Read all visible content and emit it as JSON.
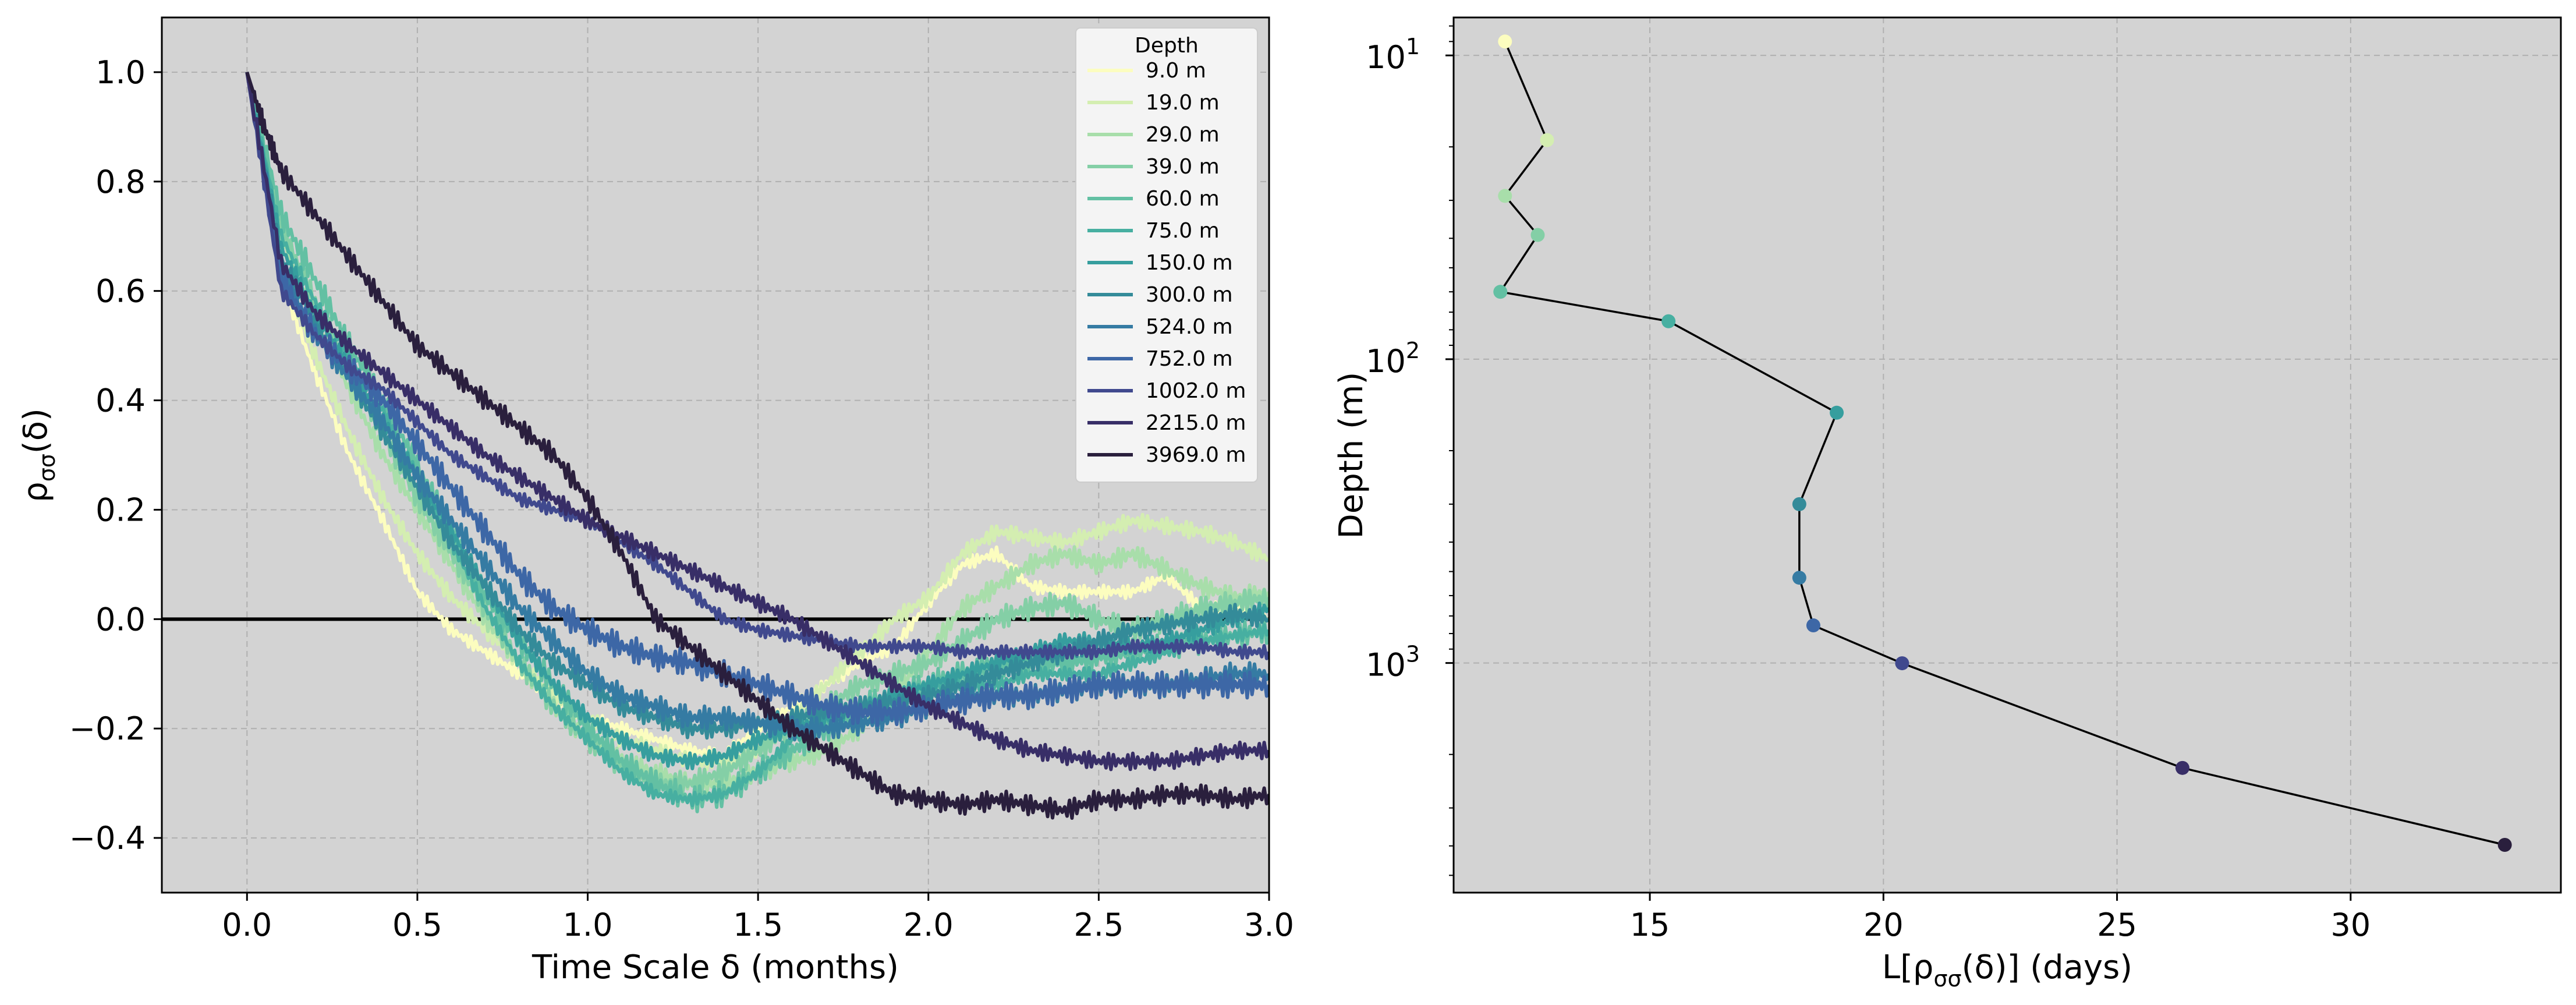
{
  "chart_data": [
    {
      "type": "line",
      "xlabel": "Time Scale δ (months)",
      "ylabel": "ρσσ(δ)",
      "ylabel_main": "ρ",
      "ylabel_sub": "σσ",
      "ylabel_tail": "(δ)",
      "xlim": [
        -0.25,
        3.0
      ],
      "ylim": [
        -0.5,
        1.1
      ],
      "x_ticks": [
        "0.0",
        "0.5",
        "1.0",
        "1.5",
        "2.0",
        "2.5",
        "3.0"
      ],
      "y_ticks": [
        "1.0",
        "0.8",
        "0.6",
        "0.4",
        "0.2",
        "0.0",
        "−0.2",
        "−0.4"
      ],
      "grid": true,
      "legend": {
        "title": "Depth",
        "placement": "top-right"
      },
      "background": "#d3d3d3",
      "zero_line": 0,
      "series": [
        {
          "name": "9.0 m",
          "color": "#fcfdbf",
          "x": [
            0,
            0.1,
            0.2,
            0.3,
            0.4,
            0.5,
            0.6,
            0.7,
            0.8,
            0.9,
            1.0,
            1.1,
            1.2,
            1.3,
            1.4,
            1.5,
            1.6,
            1.7,
            1.8,
            1.9,
            2.0,
            2.1,
            2.2,
            2.3,
            2.4,
            2.5,
            2.6,
            2.7,
            2.8,
            2.9,
            3.0
          ],
          "y": [
            1.0,
            0.62,
            0.45,
            0.3,
            0.18,
            0.05,
            -0.02,
            -0.06,
            -0.1,
            -0.14,
            -0.18,
            -0.2,
            -0.22,
            -0.24,
            -0.25,
            -0.2,
            -0.16,
            -0.12,
            -0.08,
            -0.05,
            0.03,
            0.1,
            0.12,
            0.06,
            0.05,
            0.05,
            0.05,
            0.08,
            0.02,
            0.02,
            0.0
          ]
        },
        {
          "name": "19.0 m",
          "color": "#d4eeb1",
          "x": [
            0,
            0.1,
            0.2,
            0.3,
            0.4,
            0.5,
            0.6,
            0.7,
            0.8,
            0.9,
            1.0,
            1.1,
            1.2,
            1.3,
            1.4,
            1.5,
            1.6,
            1.7,
            1.8,
            1.9,
            2.0,
            2.1,
            2.2,
            2.3,
            2.4,
            2.5,
            2.6,
            2.7,
            2.8,
            2.9,
            3.0
          ],
          "y": [
            1.0,
            0.64,
            0.48,
            0.34,
            0.22,
            0.12,
            0.04,
            -0.02,
            -0.08,
            -0.14,
            -0.18,
            -0.22,
            -0.24,
            -0.26,
            -0.26,
            -0.24,
            -0.18,
            -0.12,
            -0.06,
            0.0,
            0.04,
            0.12,
            0.16,
            0.15,
            0.14,
            0.16,
            0.18,
            0.17,
            0.16,
            0.14,
            0.11
          ]
        },
        {
          "name": "29.0 m",
          "color": "#a8deaa",
          "x": [
            0,
            0.1,
            0.2,
            0.3,
            0.4,
            0.5,
            0.6,
            0.7,
            0.8,
            0.9,
            1.0,
            1.1,
            1.2,
            1.3,
            1.4,
            1.5,
            1.6,
            1.7,
            1.8,
            1.9,
            2.0,
            2.1,
            2.2,
            2.3,
            2.4,
            2.5,
            2.6,
            2.7,
            2.8,
            2.9,
            3.0
          ],
          "y": [
            1.0,
            0.7,
            0.55,
            0.42,
            0.3,
            0.2,
            0.1,
            0.0,
            -0.08,
            -0.16,
            -0.22,
            -0.26,
            -0.28,
            -0.3,
            -0.3,
            -0.28,
            -0.26,
            -0.24,
            -0.2,
            -0.14,
            -0.06,
            0.02,
            0.06,
            0.1,
            0.12,
            0.1,
            0.12,
            0.09,
            0.06,
            0.04,
            0.05
          ]
        },
        {
          "name": "39.0 m",
          "color": "#84cfa6",
          "x": [
            0,
            0.1,
            0.2,
            0.3,
            0.4,
            0.5,
            0.6,
            0.7,
            0.8,
            0.9,
            1.0,
            1.1,
            1.2,
            1.3,
            1.4,
            1.5,
            1.6,
            1.7,
            1.8,
            1.9,
            2.0,
            2.1,
            2.2,
            2.3,
            2.4,
            2.5,
            2.6,
            2.7,
            2.8,
            2.9,
            3.0
          ],
          "y": [
            1.0,
            0.72,
            0.58,
            0.46,
            0.34,
            0.22,
            0.12,
            0.02,
            -0.08,
            -0.16,
            -0.22,
            -0.27,
            -0.3,
            -0.3,
            -0.28,
            -0.24,
            -0.2,
            -0.16,
            -0.12,
            -0.1,
            -0.08,
            -0.04,
            0.0,
            0.02,
            0.03,
            0.0,
            -0.02,
            0.0,
            0.02,
            0.03,
            0.04
          ]
        },
        {
          "name": "60.0 m",
          "color": "#63c0a3",
          "x": [
            0,
            0.1,
            0.2,
            0.3,
            0.4,
            0.5,
            0.6,
            0.7,
            0.8,
            0.9,
            1.0,
            1.1,
            1.2,
            1.3,
            1.4,
            1.5,
            1.6,
            1.7,
            1.8,
            1.9,
            2.0,
            2.1,
            2.2,
            2.3,
            2.4,
            2.5,
            2.6,
            2.7,
            2.8,
            2.9,
            3.0
          ],
          "y": [
            1.0,
            0.74,
            0.62,
            0.5,
            0.4,
            0.28,
            0.16,
            0.04,
            -0.04,
            -0.12,
            -0.2,
            -0.26,
            -0.3,
            -0.33,
            -0.32,
            -0.28,
            -0.24,
            -0.2,
            -0.16,
            -0.14,
            -0.12,
            -0.1,
            -0.08,
            -0.08,
            -0.08,
            -0.07,
            -0.06,
            -0.05,
            -0.04,
            -0.03,
            -0.02
          ]
        },
        {
          "name": "75.0 m",
          "color": "#47afa1",
          "x": [
            0,
            0.1,
            0.2,
            0.3,
            0.4,
            0.5,
            0.6,
            0.7,
            0.8,
            0.9,
            1.0,
            1.1,
            1.2,
            1.3,
            1.4,
            1.5,
            1.6,
            1.7,
            1.8,
            1.9,
            2.0,
            2.1,
            2.2,
            2.3,
            2.4,
            2.5,
            2.6,
            2.7,
            2.8,
            2.9,
            3.0
          ],
          "y": [
            1.0,
            0.7,
            0.58,
            0.48,
            0.38,
            0.26,
            0.14,
            0.02,
            -0.08,
            -0.16,
            -0.22,
            -0.28,
            -0.32,
            -0.33,
            -0.32,
            -0.28,
            -0.22,
            -0.18,
            -0.16,
            -0.14,
            -0.12,
            -0.12,
            -0.12,
            -0.1,
            -0.1,
            -0.1,
            -0.08,
            -0.06,
            -0.04,
            -0.03,
            -0.02
          ]
        },
        {
          "name": "150.0 m",
          "color": "#369e9e",
          "x": [
            0,
            0.1,
            0.2,
            0.3,
            0.4,
            0.5,
            0.6,
            0.7,
            0.8,
            0.9,
            1.0,
            1.1,
            1.2,
            1.3,
            1.4,
            1.5,
            1.6,
            1.7,
            1.8,
            1.9,
            2.0,
            2.1,
            2.2,
            2.3,
            2.4,
            2.5,
            2.6,
            2.7,
            2.8,
            2.9,
            3.0
          ],
          "y": [
            1.0,
            0.68,
            0.56,
            0.46,
            0.36,
            0.26,
            0.16,
            0.06,
            -0.04,
            -0.12,
            -0.18,
            -0.22,
            -0.25,
            -0.26,
            -0.25,
            -0.22,
            -0.2,
            -0.18,
            -0.16,
            -0.14,
            -0.12,
            -0.1,
            -0.08,
            -0.06,
            -0.04,
            -0.04,
            -0.05,
            -0.04,
            -0.02,
            0.0,
            0.02
          ]
        },
        {
          "name": "300.0 m",
          "color": "#348b99",
          "x": [
            0,
            0.1,
            0.2,
            0.3,
            0.4,
            0.5,
            0.6,
            0.7,
            0.8,
            0.9,
            1.0,
            1.1,
            1.2,
            1.3,
            1.4,
            1.5,
            1.6,
            1.7,
            1.8,
            1.9,
            2.0,
            2.1,
            2.2,
            2.3,
            2.4,
            2.5,
            2.6,
            2.7,
            2.8,
            2.9,
            3.0
          ],
          "y": [
            1.0,
            0.66,
            0.54,
            0.44,
            0.34,
            0.24,
            0.14,
            0.06,
            -0.02,
            -0.08,
            -0.12,
            -0.16,
            -0.18,
            -0.2,
            -0.2,
            -0.19,
            -0.18,
            -0.17,
            -0.16,
            -0.15,
            -0.14,
            -0.12,
            -0.1,
            -0.08,
            -0.06,
            -0.04,
            -0.02,
            -0.01,
            0.0,
            0.01,
            0.0
          ]
        },
        {
          "name": "524.0 m",
          "color": "#357ba3",
          "x": [
            0,
            0.1,
            0.2,
            0.3,
            0.4,
            0.5,
            0.6,
            0.7,
            0.8,
            0.9,
            1.0,
            1.1,
            1.2,
            1.3,
            1.4,
            1.5,
            1.6,
            1.7,
            1.8,
            1.9,
            2.0,
            2.1,
            2.2,
            2.3,
            2.4,
            2.5,
            2.6,
            2.7,
            2.8,
            2.9,
            3.0
          ],
          "y": [
            1.0,
            0.64,
            0.52,
            0.44,
            0.36,
            0.26,
            0.18,
            0.1,
            0.02,
            -0.04,
            -0.1,
            -0.14,
            -0.16,
            -0.18,
            -0.18,
            -0.19,
            -0.2,
            -0.2,
            -0.19,
            -0.18,
            -0.16,
            -0.14,
            -0.14,
            -0.14,
            -0.13,
            -0.12,
            -0.12,
            -0.12,
            -0.11,
            -0.1,
            -0.1
          ]
        },
        {
          "name": "752.0 m",
          "color": "#3d67a6",
          "x": [
            0,
            0.1,
            0.2,
            0.3,
            0.4,
            0.5,
            0.6,
            0.7,
            0.8,
            0.9,
            1.0,
            1.1,
            1.2,
            1.3,
            1.4,
            1.5,
            1.6,
            1.7,
            1.8,
            1.9,
            2.0,
            2.1,
            2.2,
            2.3,
            2.4,
            2.5,
            2.6,
            2.7,
            2.8,
            2.9,
            3.0
          ],
          "y": [
            1.0,
            0.62,
            0.52,
            0.46,
            0.4,
            0.32,
            0.24,
            0.16,
            0.08,
            0.02,
            -0.02,
            -0.05,
            -0.07,
            -0.08,
            -0.1,
            -0.12,
            -0.14,
            -0.16,
            -0.17,
            -0.17,
            -0.16,
            -0.15,
            -0.14,
            -0.14,
            -0.13,
            -0.12,
            -0.12,
            -0.12,
            -0.12,
            -0.12,
            -0.12
          ]
        },
        {
          "name": "1002.0 m",
          "color": "#40498e",
          "x": [
            0,
            0.1,
            0.2,
            0.3,
            0.4,
            0.5,
            0.6,
            0.7,
            0.8,
            0.9,
            1.0,
            1.1,
            1.2,
            1.3,
            1.4,
            1.5,
            1.6,
            1.7,
            1.8,
            1.9,
            2.0,
            2.1,
            2.2,
            2.3,
            2.4,
            2.5,
            2.6,
            2.7,
            2.8,
            2.9,
            3.0
          ],
          "y": [
            1.0,
            0.6,
            0.52,
            0.46,
            0.42,
            0.36,
            0.3,
            0.26,
            0.22,
            0.2,
            0.18,
            0.14,
            0.1,
            0.05,
            0.0,
            -0.02,
            -0.03,
            -0.04,
            -0.05,
            -0.05,
            -0.05,
            -0.06,
            -0.06,
            -0.06,
            -0.06,
            -0.06,
            -0.05,
            -0.05,
            -0.05,
            -0.06,
            -0.06
          ]
        },
        {
          "name": "2215.0 m",
          "color": "#382e67",
          "x": [
            0,
            0.1,
            0.2,
            0.3,
            0.4,
            0.5,
            0.6,
            0.7,
            0.8,
            0.9,
            1.0,
            1.1,
            1.2,
            1.3,
            1.4,
            1.5,
            1.6,
            1.7,
            1.8,
            1.9,
            2.0,
            2.1,
            2.2,
            2.3,
            2.4,
            2.5,
            2.6,
            2.7,
            2.8,
            2.9,
            3.0
          ],
          "y": [
            1.0,
            0.65,
            0.56,
            0.5,
            0.45,
            0.4,
            0.35,
            0.3,
            0.26,
            0.22,
            0.18,
            0.15,
            0.12,
            0.09,
            0.06,
            0.03,
            0.0,
            -0.04,
            -0.08,
            -0.12,
            -0.16,
            -0.19,
            -0.22,
            -0.24,
            -0.25,
            -0.26,
            -0.26,
            -0.26,
            -0.25,
            -0.24,
            -0.24
          ]
        },
        {
          "name": "3969.0 m",
          "color": "#2a1f3d",
          "x": [
            0,
            0.05,
            0.1,
            0.2,
            0.3,
            0.4,
            0.5,
            0.6,
            0.7,
            0.8,
            0.9,
            1.0,
            1.1,
            1.2,
            1.3,
            1.4,
            1.5,
            1.6,
            1.7,
            1.8,
            1.9,
            2.0,
            2.1,
            2.2,
            2.3,
            2.4,
            2.5,
            2.6,
            2.7,
            2.8,
            2.9,
            3.0
          ],
          "y": [
            1.0,
            0.9,
            0.82,
            0.74,
            0.66,
            0.58,
            0.5,
            0.45,
            0.4,
            0.35,
            0.3,
            0.22,
            0.12,
            0.0,
            -0.05,
            -0.1,
            -0.15,
            -0.2,
            -0.24,
            -0.28,
            -0.32,
            -0.33,
            -0.34,
            -0.33,
            -0.34,
            -0.35,
            -0.33,
            -0.33,
            -0.32,
            -0.32,
            -0.33,
            -0.32
          ]
        }
      ]
    },
    {
      "type": "line",
      "xlabel": "L[ρσσ(δ)] (days)",
      "xlabel_head": "L[",
      "xlabel_main": "ρ",
      "xlabel_sub": "σσ",
      "xlabel_tail": "(δ)] (days)",
      "ylabel": "Depth (m)",
      "xlim": [
        10.8,
        34.5
      ],
      "y_scale": "log",
      "y_inverted": true,
      "ylim": [
        7.5,
        5700
      ],
      "x_ticks": [
        "15",
        "20",
        "25",
        "30"
      ],
      "y_ticks": [
        {
          "value": 10,
          "base": "10",
          "exp": "1"
        },
        {
          "value": 100,
          "base": "10",
          "exp": "2"
        },
        {
          "value": 1000,
          "base": "10",
          "exp": "3"
        }
      ],
      "grid": true,
      "background": "#d3d3d3",
      "line_color": "#000000",
      "points": [
        {
          "depth": 9.0,
          "L": 11.9,
          "color": "#fcfdbf"
        },
        {
          "depth": 19.0,
          "L": 12.8,
          "color": "#d4eeb1"
        },
        {
          "depth": 29.0,
          "L": 11.9,
          "color": "#a8deaa"
        },
        {
          "depth": 39.0,
          "L": 12.6,
          "color": "#84cfa6"
        },
        {
          "depth": 60.0,
          "L": 11.8,
          "color": "#63c0a3"
        },
        {
          "depth": 75.0,
          "L": 15.4,
          "color": "#47afa1"
        },
        {
          "depth": 150.0,
          "L": 19.0,
          "color": "#369e9e"
        },
        {
          "depth": 300.0,
          "L": 18.2,
          "color": "#348b99"
        },
        {
          "depth": 524.0,
          "L": 18.2,
          "color": "#357ba3"
        },
        {
          "depth": 752.0,
          "L": 18.5,
          "color": "#3d67a6"
        },
        {
          "depth": 1002.0,
          "L": 20.4,
          "color": "#40498e"
        },
        {
          "depth": 2215.0,
          "L": 26.4,
          "color": "#382e67"
        },
        {
          "depth": 3969.0,
          "L": 33.3,
          "color": "#2a1f3d"
        }
      ]
    }
  ]
}
